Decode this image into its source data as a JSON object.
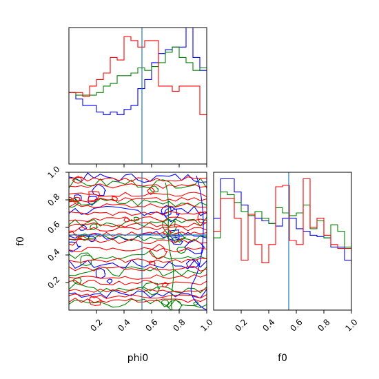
{
  "chart_data": {
    "type": "corner",
    "parameters": [
      "phi0",
      "f0"
    ],
    "truths": {
      "phi0": 0.53,
      "f0": 0.545
    },
    "truth_color": "#1f77b4",
    "series_colors": [
      "#0000ff",
      "#008000",
      "#ff0000"
    ],
    "xlim": [
      0,
      1
    ],
    "ticks": [
      0.2,
      0.4,
      0.6,
      0.8,
      1.0
    ],
    "tick_labels": [
      "0.2",
      "0.4",
      "0.6",
      "0.8",
      "1.0"
    ],
    "panels": [
      {
        "id": "hist-phi0",
        "type": "histogram-step",
        "param": "phi0",
        "bin_edges": [
          0,
          0.05,
          0.1,
          0.15,
          0.2,
          0.25,
          0.3,
          0.35,
          0.4,
          0.45,
          0.5,
          0.55,
          0.6,
          0.65,
          0.7,
          0.75,
          0.8,
          0.85,
          0.9,
          0.95,
          1.0
        ],
        "series": [
          {
            "color": "#0000ff",
            "values": [
              0.55,
              0.5,
              0.45,
              0.45,
              0.4,
              0.38,
              0.4,
              0.38,
              0.42,
              0.45,
              0.58,
              0.65,
              0.78,
              0.85,
              0.88,
              0.9,
              0.9,
              1.05,
              0.82,
              0.72
            ]
          },
          {
            "color": "#008000",
            "values": [
              0.55,
              0.53,
              0.53,
              0.53,
              0.55,
              0.6,
              0.62,
              0.68,
              0.68,
              0.7,
              0.74,
              0.72,
              0.75,
              0.78,
              0.86,
              0.9,
              0.82,
              0.78,
              0.72,
              0.74
            ]
          },
          {
            "color": "#ff0000",
            "values": [
              0.55,
              0.55,
              0.52,
              0.6,
              0.65,
              0.7,
              0.82,
              0.8,
              0.98,
              0.95,
              0.9,
              0.95,
              0.95,
              0.6,
              0.6,
              0.56,
              0.6,
              0.6,
              0.6,
              0.38
            ]
          }
        ]
      },
      {
        "id": "hist-f0",
        "type": "histogram-step",
        "param": "f0",
        "bin_edges": [
          0,
          0.05,
          0.1,
          0.15,
          0.2,
          0.25,
          0.3,
          0.35,
          0.4,
          0.45,
          0.5,
          0.55,
          0.6,
          0.65,
          0.7,
          0.75,
          0.8,
          0.85,
          0.9,
          0.95,
          1.0
        ],
        "series": [
          {
            "color": "#0000ff",
            "values": [
              0.7,
              1.0,
              1.0,
              0.9,
              0.8,
              0.72,
              0.7,
              0.68,
              0.66,
              0.64,
              0.7,
              0.7,
              0.62,
              0.6,
              0.57,
              0.56,
              0.55,
              0.48,
              0.48,
              0.38
            ]
          },
          {
            "color": "#008000",
            "values": [
              0.55,
              0.9,
              0.88,
              0.82,
              0.75,
              0.72,
              0.75,
              0.7,
              0.66,
              0.78,
              0.74,
              0.72,
              0.74,
              0.8,
              0.62,
              0.68,
              0.55,
              0.65,
              0.6,
              0.48
            ]
          },
          {
            "color": "#ff0000",
            "values": [
              0.6,
              0.85,
              0.85,
              0.7,
              0.38,
              0.73,
              0.5,
              0.36,
              0.5,
              0.94,
              0.95,
              0.53,
              0.5,
              1.0,
              0.63,
              0.7,
              0.57,
              0.5,
              0.47,
              0.47
            ]
          }
        ]
      },
      {
        "id": "contour-phi0-f0",
        "type": "contour",
        "x_param": "phi0",
        "y_param": "f0",
        "xlabel": "phi0",
        "ylabel": "f0"
      }
    ],
    "xlabels": [
      "phi0",
      "f0"
    ],
    "ylabel": "f0"
  }
}
